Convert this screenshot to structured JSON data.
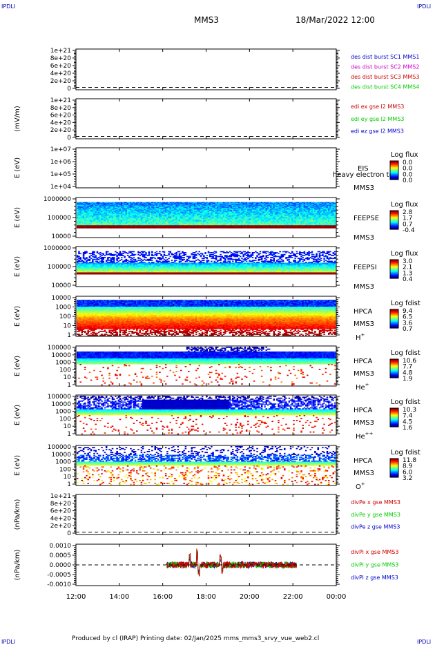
{
  "header": {
    "corner_tl": "IPDLI",
    "corner_tr": "IPDLI",
    "corner_bl": "IPDLI",
    "corner_br": "IPDLI",
    "title": "MMS3",
    "datetime": "18/Mar/2022 12:00"
  },
  "footer": {
    "text": "Produced by cl (IRAP)   Printing date: 02/Jan/2025   mms_mms3_srvy_vue_web2.cl"
  },
  "colors": {
    "blue": "#0000cc",
    "magenta": "#cc00cc",
    "red": "#cc0000",
    "green": "#00cc00",
    "dashed": "#000000"
  },
  "chart_data": [
    {
      "id": "des",
      "type": "line",
      "ylabel": "",
      "yticks": [
        "1e+21",
        "8e+20",
        "6e+20",
        "4e+20",
        "2e+20",
        "0"
      ],
      "series": [
        {
          "name": "des dist burst SC1 MMS1",
          "color": "#0000cc"
        },
        {
          "name": "des dist burst SC2 MMS2",
          "color": "#cc00cc"
        },
        {
          "name": "des dist burst SC3 MMS3",
          "color": "#cc0000"
        },
        {
          "name": "des dist burst SC4 MMS4",
          "color": "#00cc00"
        }
      ],
      "zero_line": true
    },
    {
      "id": "edi",
      "type": "line",
      "ylabel": "(mV/m)",
      "yticks": [
        "1e+21",
        "8e+20",
        "6e+20",
        "4e+20",
        "2e+20",
        "0"
      ],
      "series": [
        {
          "name": "edi ex gse l2 MMS3",
          "color": "#cc0000"
        },
        {
          "name": "edi ey gse l2 MMS3",
          "color": "#00cc00"
        },
        {
          "name": "edi ez gse l2 MMS3",
          "color": "#0000cc"
        }
      ],
      "zero_line": true
    },
    {
      "id": "eis",
      "type": "heatmap",
      "ylabel": "E (eV)",
      "yticks": [
        "1e+07",
        "1e+06",
        "1e+05",
        "1e+04"
      ],
      "instrument": "EIS",
      "spacecraft": "MMS3",
      "overlay": "heavy electron to",
      "colorbar_title": "Log flux",
      "colorbar_ticks": [
        "0.0",
        "0.0",
        "0.0",
        "0.0"
      ],
      "empty": true
    },
    {
      "id": "feepse",
      "type": "heatmap",
      "ylabel": "E (eV)",
      "yticks": [
        "1000000",
        "100000",
        "10000"
      ],
      "instrument": "FEEPSE",
      "spacecraft": "MMS3",
      "colorbar_title": "Log flux",
      "colorbar_ticks": [
        "2.8",
        "1.7",
        "0.7",
        "-0.4"
      ],
      "time_coverage": [
        "12:00",
        "00:00"
      ]
    },
    {
      "id": "feepsi",
      "type": "heatmap",
      "ylabel": "E (eV)",
      "yticks": [
        "1000000",
        "100000",
        "10000"
      ],
      "instrument": "FEEPSI",
      "spacecraft": "MMS3",
      "colorbar_title": "Log flux",
      "colorbar_ticks": [
        "3.0",
        "2.1",
        "1.3",
        "0.4"
      ],
      "time_coverage": [
        "12:00",
        "00:00"
      ]
    },
    {
      "id": "hpca_h",
      "type": "heatmap",
      "ylabel": "E (eV)",
      "yticks": [
        "10000",
        "1000",
        "100",
        "10",
        "1"
      ],
      "instrument": "HPCA",
      "spacecraft": "MMS3",
      "species": "H",
      "species_charge": "+",
      "colorbar_title": "Log fdist",
      "colorbar_ticks": [
        "9.4",
        "6.5",
        "3.6",
        "0.7"
      ],
      "time_coverage": [
        "12:00",
        "00:00"
      ]
    },
    {
      "id": "hpca_he",
      "type": "heatmap",
      "ylabel": "E (eV)",
      "yticks": [
        "100000",
        "10000",
        "1000",
        "100",
        "10",
        "1"
      ],
      "instrument": "HPCA",
      "spacecraft": "MMS3",
      "species": "He",
      "species_charge": "+",
      "colorbar_title": "Log fdist",
      "colorbar_ticks": [
        "10.6",
        "7.7",
        "4.8",
        "1.9"
      ],
      "time_coverage": [
        "12:00",
        "00:00"
      ]
    },
    {
      "id": "hpca_hepp",
      "type": "heatmap",
      "ylabel": "E (eV)",
      "yticks": [
        "100000",
        "10000",
        "1000",
        "100",
        "10",
        "1"
      ],
      "instrument": "HPCA",
      "spacecraft": "MMS3",
      "species": "He",
      "species_charge": "++",
      "colorbar_title": "Log fdist",
      "colorbar_ticks": [
        "10.3",
        "7.4",
        "4.5",
        "1.6"
      ],
      "time_coverage": [
        "12:00",
        "00:00"
      ]
    },
    {
      "id": "hpca_o",
      "type": "heatmap",
      "ylabel": "E (eV)",
      "yticks": [
        "100000",
        "10000",
        "1000",
        "100",
        "10",
        "1"
      ],
      "instrument": "HPCA",
      "spacecraft": "MMS3",
      "species": "O",
      "species_charge": "+",
      "colorbar_title": "Log fdist",
      "colorbar_ticks": [
        "11.8",
        "8.9",
        "6.0",
        "3.2"
      ],
      "time_coverage": [
        "12:00",
        "00:00"
      ]
    },
    {
      "id": "divpe",
      "type": "line",
      "ylabel": "(nPa/km)",
      "yticks": [
        "1e+21",
        "8e+20",
        "6e+20",
        "4e+20",
        "2e+20",
        "0"
      ],
      "series": [
        {
          "name": "divPe x gse MMS3",
          "color": "#cc0000"
        },
        {
          "name": "divPe y gse MMS3",
          "color": "#00cc00"
        },
        {
          "name": "divPe z gse MMS3",
          "color": "#0000cc"
        }
      ],
      "zero_line": true
    },
    {
      "id": "divpi",
      "type": "line",
      "ylabel": "(nPa/km)",
      "yticks": [
        "0.0010",
        "0.0005",
        "0.0000",
        "-0.0005",
        "-0.0010"
      ],
      "ylim": [
        -0.0013,
        0.0013
      ],
      "series": [
        {
          "name": "divPi x gse MMS3",
          "color": "#cc0000"
        },
        {
          "name": "divPi y gse MMS3",
          "color": "#00cc00"
        },
        {
          "name": "divPi z gse MMS3",
          "color": "#0000cc"
        }
      ],
      "data_time_range": [
        "16:10",
        "22:10"
      ],
      "amplitude_typical": 0.0002,
      "spikes": [
        {
          "time": "17:15",
          "value": 0.0008
        },
        {
          "time": "17:35",
          "value": 0.0012
        },
        {
          "time": "17:40",
          "value": -0.0008
        },
        {
          "time": "18:40",
          "value": 0.0007
        },
        {
          "time": "18:45",
          "value": -0.0006
        }
      ],
      "zero_line": true
    }
  ],
  "xaxis": {
    "ticks": [
      "12:00",
      "14:00",
      "16:00",
      "18:00",
      "20:00",
      "22:00",
      "00:00"
    ]
  }
}
